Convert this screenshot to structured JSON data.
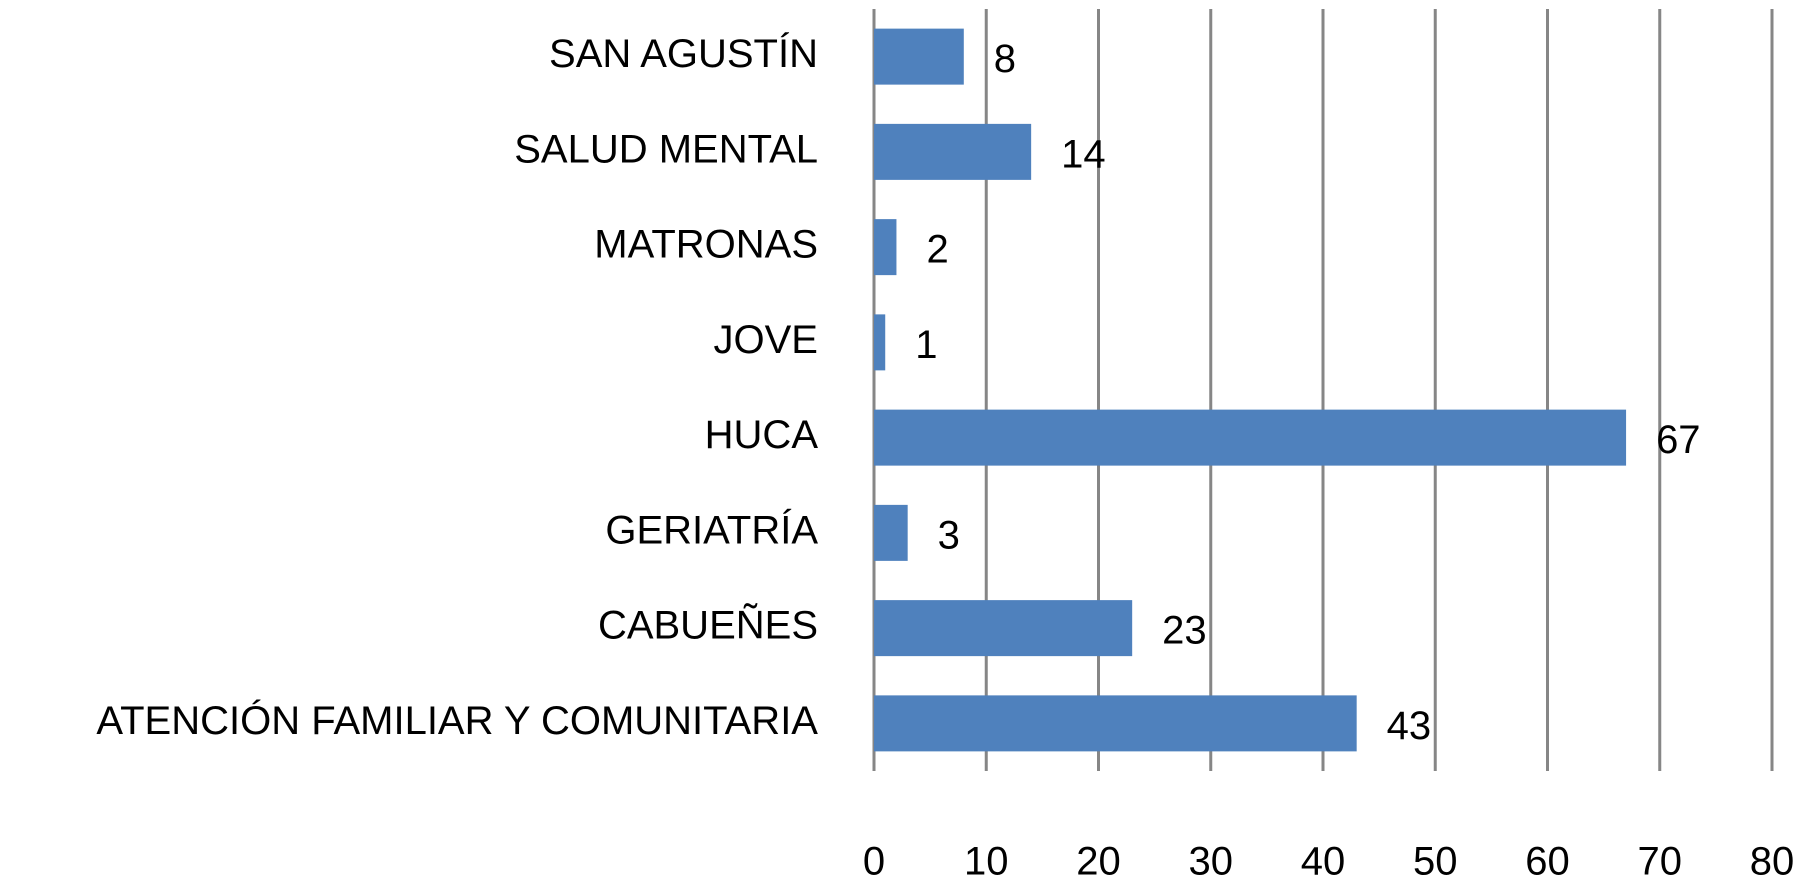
{
  "chart_data": {
    "type": "hbar",
    "categories": [
      "SAN AGUSTÍN",
      "SALUD MENTAL",
      "MATRONAS",
      "JOVE",
      "HUCA",
      "GERIATRÍA",
      "CABUEÑES",
      "ATENCIÓN FAMILIAR Y COMUNITARIA"
    ],
    "values": [
      8,
      14,
      2,
      1,
      67,
      3,
      23,
      43
    ],
    "color": "#4f81bd",
    "xlim": [
      0,
      80
    ],
    "xticks": [
      0,
      10,
      20,
      30,
      40,
      50,
      60,
      70,
      80
    ],
    "grid": true
  }
}
